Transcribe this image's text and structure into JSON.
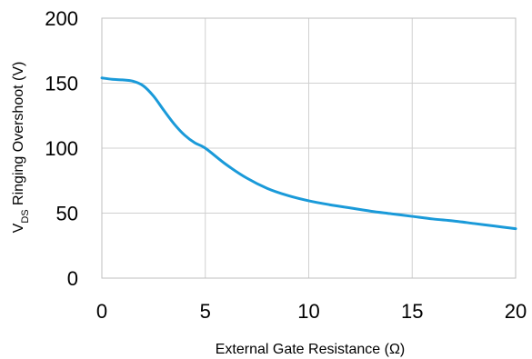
{
  "chart_data": {
    "type": "line",
    "xlabel": "External Gate Resistance (Ω)",
    "ylabel": {
      "prefix": "V",
      "subscript": "DS",
      "rest": " Ringing Overshoot (V)"
    },
    "xlim": [
      0,
      20
    ],
    "ylim": [
      0,
      200
    ],
    "x_ticks": [
      0,
      5,
      10,
      15,
      20
    ],
    "y_ticks": [
      0,
      50,
      100,
      150,
      200
    ],
    "x_tick_labels": [
      "0",
      "5",
      "10",
      "15",
      "20"
    ],
    "y_tick_labels": [
      "0",
      "50",
      "100",
      "150",
      "200"
    ],
    "grid": true,
    "series": [
      {
        "color": "#1a9ad9",
        "points": [
          [
            0,
            154
          ],
          [
            0.5,
            153
          ],
          [
            1,
            152.5
          ],
          [
            1.5,
            151.5
          ],
          [
            2,
            148
          ],
          [
            2.5,
            140
          ],
          [
            3,
            129
          ],
          [
            3.5,
            118.5
          ],
          [
            4,
            110
          ],
          [
            4.5,
            104
          ],
          [
            5,
            100
          ],
          [
            6,
            87.5
          ],
          [
            7,
            77
          ],
          [
            8,
            69
          ],
          [
            9,
            63.5
          ],
          [
            10,
            59.5
          ],
          [
            11,
            56.5
          ],
          [
            12,
            54
          ],
          [
            13,
            51.5
          ],
          [
            14,
            49.5
          ],
          [
            15,
            47.5
          ],
          [
            16,
            45.5
          ],
          [
            17,
            44
          ],
          [
            18,
            42
          ],
          [
            19,
            40
          ],
          [
            20,
            38
          ]
        ]
      }
    ]
  }
}
